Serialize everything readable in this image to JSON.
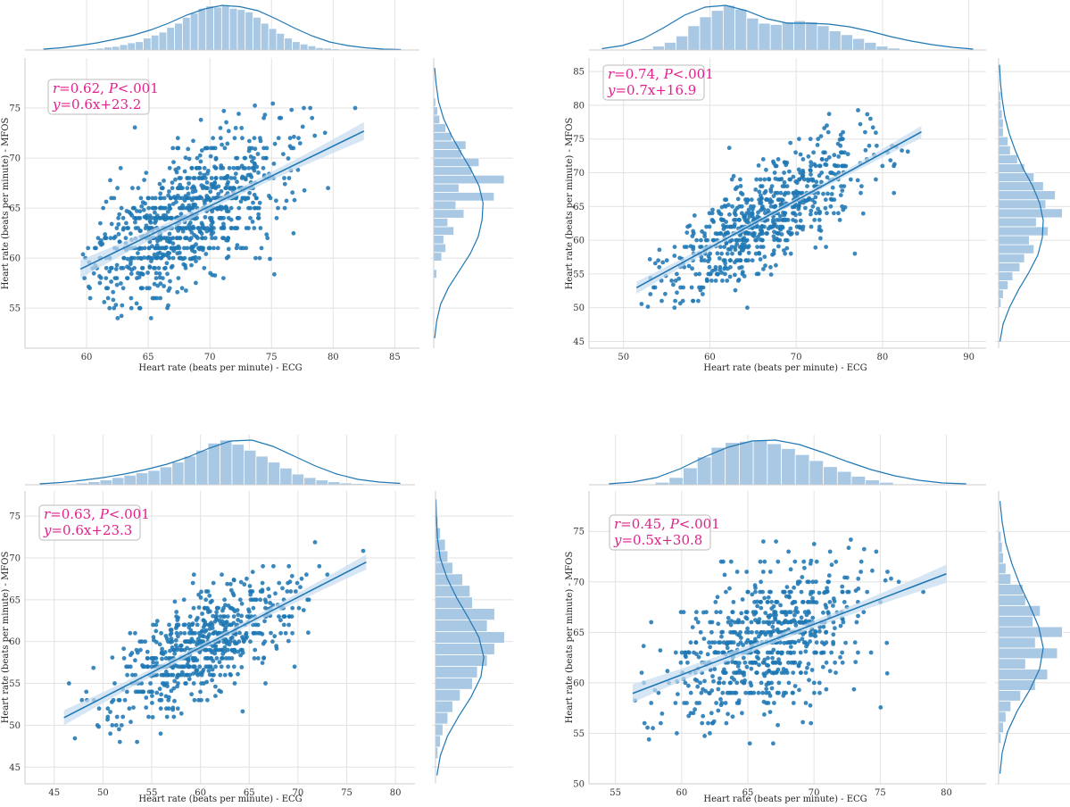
{
  "colors": {
    "point": "#1f77b4",
    "bar_fill": "#a9c8e3",
    "bar_stroke": "#ffffff",
    "line": "#1f77b4",
    "band": "#c6dbef",
    "grid": "#e2e2e2",
    "panel_bg": "#ffffff",
    "annotation": "#e0218a"
  },
  "chart_data": [
    {
      "type": "scatter",
      "xlabel": "Heart rate (beats per minute) - ECG",
      "ylabel": "Heart rate (beats per minute) - MFOS",
      "xlim": [
        55,
        87
      ],
      "ylim": [
        51,
        80
      ],
      "xticks": [
        60,
        65,
        70,
        75,
        80,
        85
      ],
      "yticks": [
        55,
        60,
        65,
        70,
        75
      ],
      "annotation": {
        "r_label": "r",
        "r_text": "=0.62, ",
        "p_label": "P",
        "p_text": "<.001",
        "eq_label": "y",
        "eq_text": "=0.6x+23.2"
      },
      "regression": {
        "slope": 0.6,
        "intercept": 23.2,
        "x_range": [
          59.5,
          82.5
        ]
      },
      "marginal_x": {
        "bins_range": [
          59.5,
          80.5
        ],
        "counts": [
          1,
          2,
          3,
          5,
          6,
          9,
          12,
          14,
          20,
          25,
          30,
          38,
          45,
          55,
          62,
          70,
          74,
          72,
          75,
          70,
          68,
          64,
          55,
          45,
          36,
          28,
          20,
          14,
          10,
          7,
          4,
          3,
          2
        ],
        "kde": [
          0.02,
          0.05,
          0.1,
          0.16,
          0.24,
          0.33,
          0.45,
          0.6,
          0.78,
          0.92,
          1.0,
          0.97,
          0.88,
          0.7,
          0.5,
          0.32,
          0.18,
          0.1,
          0.05,
          0.02,
          0.01
        ]
      },
      "marginal_y": {
        "bins_range": [
          58,
          76
        ],
        "counts": [
          3,
          0,
          8,
          12,
          10,
          20,
          14,
          30,
          22,
          60,
          25,
          70,
          38,
          45,
          28,
          32,
          18,
          12,
          6,
          4,
          2
        ],
        "kde": [
          0.02,
          0.06,
          0.14,
          0.3,
          0.52,
          0.74,
          0.9,
          0.98,
          1.0,
          0.92,
          0.75,
          0.55,
          0.36,
          0.2,
          0.1,
          0.05,
          0.02
        ]
      },
      "points": {
        "n": 900,
        "x_mean": 68,
        "x_sd": 4.2,
        "y_sd": 3.2,
        "x_clip": [
          59.5,
          82.5
        ],
        "y_clip": [
          54,
          76.5
        ]
      }
    },
    {
      "type": "scatter",
      "xlabel": "Heart rate (beats per minute) - ECG",
      "ylabel": "Heart rate (beats per minute) - MFOS",
      "xlim": [
        46,
        92
      ],
      "ylim": [
        44,
        87
      ],
      "xticks": [
        50,
        60,
        70,
        80,
        90
      ],
      "yticks": [
        45,
        50,
        55,
        60,
        65,
        70,
        75,
        80,
        85
      ],
      "annotation": {
        "r_label": "r",
        "r_text": "=0.74, ",
        "p_label": "P",
        "p_text": "<.001",
        "eq_label": "y",
        "eq_text": "=0.7x+16.9"
      },
      "regression": {
        "slope": 0.7,
        "intercept": 16.9,
        "x_range": [
          51.5,
          84.5
        ]
      },
      "marginal_x": {
        "bins_range": [
          52,
          82
        ],
        "counts": [
          2,
          6,
          12,
          22,
          38,
          52,
          62,
          70,
          64,
          50,
          42,
          40,
          44,
          46,
          44,
          38,
          30,
          24,
          18,
          12,
          6,
          3
        ],
        "kde": [
          0.03,
          0.1,
          0.25,
          0.5,
          0.78,
          0.96,
          1.0,
          0.88,
          0.7,
          0.6,
          0.6,
          0.58,
          0.52,
          0.42,
          0.3,
          0.2,
          0.12,
          0.06,
          0.02
        ]
      },
      "marginal_y": {
        "bins_range": [
          50,
          82
        ],
        "counts": [
          2,
          4,
          8,
          12,
          18,
          22,
          30,
          26,
          42,
          32,
          54,
          40,
          48,
          38,
          30,
          22,
          16,
          10,
          8,
          4,
          4,
          3,
          2,
          2
        ],
        "kde": [
          0.03,
          0.1,
          0.25,
          0.45,
          0.68,
          0.88,
          0.98,
          1.0,
          0.92,
          0.76,
          0.55,
          0.38,
          0.24,
          0.14,
          0.08,
          0.04,
          0.02
        ]
      },
      "points": {
        "n": 700,
        "x_mean": 66,
        "x_sd": 6.2,
        "y_sd": 3.6,
        "x_clip": [
          51.5,
          84.5
        ],
        "y_clip": [
          50,
          82
        ]
      }
    },
    {
      "type": "scatter",
      "xlabel": "Heart rate (beats per minute) - ECG",
      "ylabel": "Heart rate (beats per minute) - MFOS",
      "xlim": [
        42,
        82
      ],
      "ylim": [
        43,
        78
      ],
      "xticks": [
        45,
        50,
        55,
        60,
        65,
        70,
        75,
        80
      ],
      "yticks": [
        45,
        50,
        55,
        60,
        65,
        70,
        75
      ],
      "annotation": {
        "r_label": "r",
        "r_text": "=0.63, ",
        "p_label": "P",
        "p_text": "<.001",
        "eq_label": "y",
        "eq_text": "=0.6x+23.3"
      },
      "regression": {
        "slope": 0.6,
        "intercept": 23.3,
        "x_range": [
          46,
          77
        ]
      },
      "marginal_x": {
        "bins_range": [
          46,
          78
        ],
        "counts": [
          1,
          3,
          5,
          8,
          12,
          16,
          20,
          24,
          30,
          38,
          48,
          58,
          70,
          75,
          68,
          58,
          48,
          38,
          28,
          18,
          12,
          8,
          5,
          3,
          2,
          1
        ],
        "kde": [
          0.02,
          0.05,
          0.1,
          0.16,
          0.24,
          0.34,
          0.46,
          0.62,
          0.82,
          0.98,
          1.0,
          0.86,
          0.64,
          0.42,
          0.24,
          0.12,
          0.06,
          0.03
        ]
      },
      "marginal_y": {
        "bins_range": [
          46,
          75
        ],
        "counts": [
          2,
          4,
          6,
          10,
          14,
          20,
          30,
          34,
          42,
          48,
          56,
          42,
          48,
          30,
          28,
          22,
          14,
          10,
          8,
          4,
          2
        ],
        "kde": [
          0.03,
          0.1,
          0.25,
          0.48,
          0.74,
          0.94,
          1.0,
          0.9,
          0.68,
          0.44,
          0.24,
          0.1,
          0.04,
          0.02,
          0.01
        ]
      },
      "points": {
        "n": 650,
        "x_mean": 60,
        "x_sd": 5.0,
        "y_sd": 2.9,
        "x_clip": [
          46,
          77
        ],
        "y_clip": [
          46.5,
          74.5
        ]
      }
    },
    {
      "type": "scatter",
      "xlabel": "Heart rate (beats per minute) - ECG",
      "ylabel": "Heart rate (beats per minute) - MFOS",
      "xlim": [
        53,
        83
      ],
      "ylim": [
        50,
        79
      ],
      "xticks": [
        55,
        60,
        65,
        70,
        75,
        80
      ],
      "yticks": [
        50,
        55,
        60,
        65,
        70,
        75
      ],
      "annotation": {
        "r_label": "r",
        "r_text": "=0.45, ",
        "p_label": "P",
        "p_text": "<.001",
        "eq_label": "y",
        "eq_text": "=0.5x+30.8"
      },
      "regression": {
        "slope": 0.5,
        "intercept": 30.8,
        "x_range": [
          56.3,
          80
        ]
      },
      "marginal_x": {
        "bins_range": [
          58,
          76
        ],
        "counts": [
          4,
          12,
          28,
          46,
          62,
          70,
          72,
          74,
          68,
          60,
          50,
          40,
          30,
          22,
          14,
          8,
          4
        ],
        "kde": [
          0.02,
          0.06,
          0.16,
          0.36,
          0.62,
          0.84,
          0.98,
          1.0,
          0.9,
          0.72,
          0.52,
          0.34,
          0.2,
          0.1,
          0.04,
          0.02
        ]
      },
      "marginal_y": {
        "bins_range": [
          54,
          75
        ],
        "counts": [
          2,
          4,
          6,
          10,
          18,
          30,
          40,
          22,
          48,
          30,
          52,
          28,
          34,
          22,
          20,
          10,
          6,
          4,
          3,
          2
        ],
        "kde": [
          0.03,
          0.08,
          0.2,
          0.42,
          0.7,
          0.92,
          1.0,
          0.9,
          0.7,
          0.48,
          0.3,
          0.16,
          0.08,
          0.03
        ]
      },
      "points": {
        "n": 700,
        "x_mean": 66,
        "x_sd": 4.0,
        "y_sd": 3.6,
        "x_clip": [
          56.3,
          80
        ],
        "y_clip": [
          54,
          74.5
        ]
      }
    }
  ]
}
